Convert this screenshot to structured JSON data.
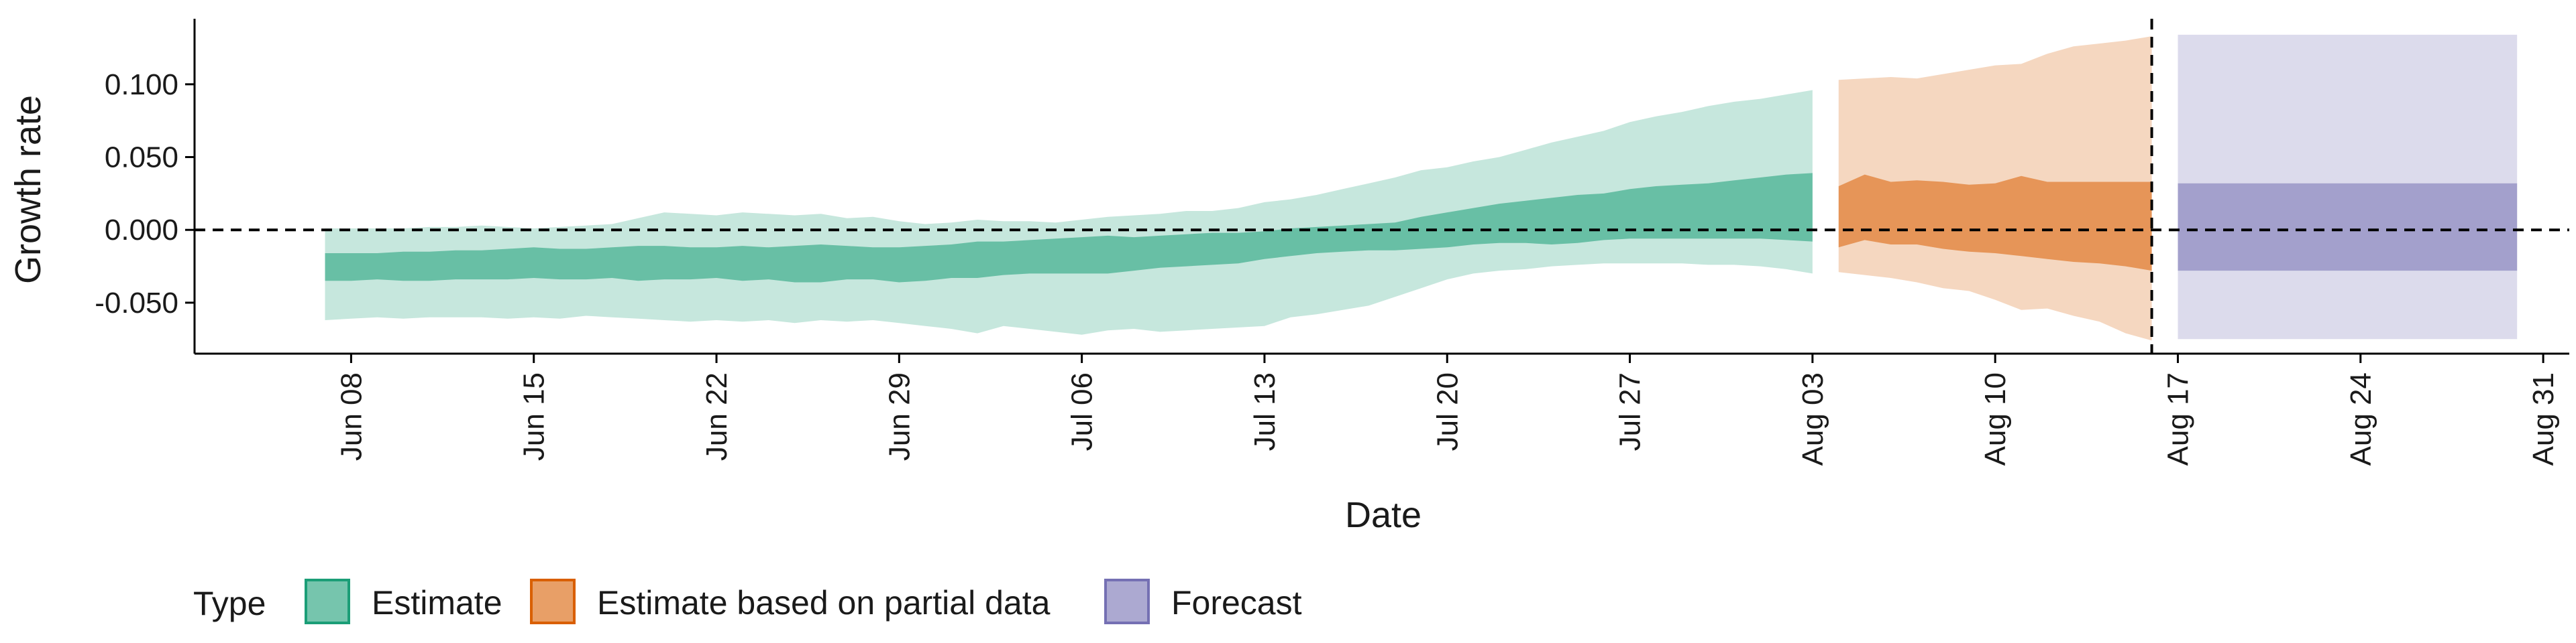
{
  "chart_data": {
    "type": "area",
    "xlabel": "Date",
    "ylabel": "Growth rate",
    "x_tick_labels": [
      "Jun 08",
      "Jun 15",
      "Jun 22",
      "Jun 29",
      "Jul 06",
      "Jul 13",
      "Jul 20",
      "Jul 27",
      "Aug 03",
      "Aug 10",
      "Aug 17",
      "Aug 24",
      "Aug 31"
    ],
    "y_tick_labels": [
      "-0.050",
      "0.000",
      "0.050",
      "0.100"
    ],
    "y_ticks": [
      -0.05,
      0.0,
      0.05,
      0.1
    ],
    "ylim": [
      -0.085,
      0.145
    ],
    "xlim_days_note": "",
    "x_range": [
      "2020-06-02",
      "2020-09-01"
    ],
    "reference_line_y": 0.0,
    "vertical_line_date": "2020-08-16",
    "grid": false,
    "legend": {
      "title": "Type",
      "position": "bottom-left",
      "entries": [
        "Estimate",
        "Estimate based on partial data",
        "Forecast"
      ]
    },
    "colors": {
      "Estimate": "#1b9e77",
      "Estimate based on partial data": "#d95f02",
      "Forecast": "#7570b3"
    },
    "series": [
      {
        "name": "Estimate",
        "date": [
          "2020-06-07",
          "2020-06-08",
          "2020-06-09",
          "2020-06-10",
          "2020-06-11",
          "2020-06-12",
          "2020-06-13",
          "2020-06-14",
          "2020-06-15",
          "2020-06-16",
          "2020-06-17",
          "2020-06-18",
          "2020-06-19",
          "2020-06-20",
          "2020-06-21",
          "2020-06-22",
          "2020-06-23",
          "2020-06-24",
          "2020-06-25",
          "2020-06-26",
          "2020-06-27",
          "2020-06-28",
          "2020-06-29",
          "2020-06-30",
          "2020-07-01",
          "2020-07-02",
          "2020-07-03",
          "2020-07-04",
          "2020-07-05",
          "2020-07-06",
          "2020-07-07",
          "2020-07-08",
          "2020-07-09",
          "2020-07-10",
          "2020-07-11",
          "2020-07-12",
          "2020-07-13",
          "2020-07-14",
          "2020-07-15",
          "2020-07-16",
          "2020-07-17",
          "2020-07-18",
          "2020-07-19",
          "2020-07-20",
          "2020-07-21",
          "2020-07-22",
          "2020-07-23",
          "2020-07-24",
          "2020-07-25",
          "2020-07-26",
          "2020-07-27",
          "2020-07-28",
          "2020-07-29",
          "2020-07-30",
          "2020-07-31",
          "2020-08-01",
          "2020-08-02",
          "2020-08-03"
        ],
        "lower_90": [
          -0.062,
          -0.061,
          -0.06,
          -0.061,
          -0.06,
          -0.06,
          -0.06,
          -0.061,
          -0.06,
          -0.061,
          -0.059,
          -0.06,
          -0.061,
          -0.062,
          -0.063,
          -0.062,
          -0.063,
          -0.062,
          -0.064,
          -0.062,
          -0.063,
          -0.062,
          -0.064,
          -0.066,
          -0.068,
          -0.071,
          -0.066,
          -0.068,
          -0.07,
          -0.072,
          -0.069,
          -0.068,
          -0.07,
          -0.069,
          -0.068,
          -0.067,
          -0.066,
          -0.06,
          -0.058,
          -0.055,
          -0.052,
          -0.046,
          -0.04,
          -0.034,
          -0.03,
          -0.028,
          -0.027,
          -0.025,
          -0.024,
          -0.023,
          -0.023,
          -0.023,
          -0.023,
          -0.024,
          -0.024,
          -0.025,
          -0.027,
          -0.03
        ],
        "lower_50": [
          -0.035,
          -0.035,
          -0.034,
          -0.035,
          -0.035,
          -0.034,
          -0.034,
          -0.034,
          -0.033,
          -0.034,
          -0.034,
          -0.033,
          -0.035,
          -0.034,
          -0.034,
          -0.033,
          -0.035,
          -0.034,
          -0.036,
          -0.036,
          -0.034,
          -0.034,
          -0.036,
          -0.035,
          -0.033,
          -0.033,
          -0.031,
          -0.03,
          -0.03,
          -0.03,
          -0.03,
          -0.028,
          -0.026,
          -0.025,
          -0.024,
          -0.023,
          -0.02,
          -0.018,
          -0.016,
          -0.015,
          -0.014,
          -0.014,
          -0.013,
          -0.012,
          -0.01,
          -0.009,
          -0.009,
          -0.01,
          -0.009,
          -0.007,
          -0.006,
          -0.006,
          -0.006,
          -0.006,
          -0.006,
          -0.006,
          -0.007,
          -0.008
        ],
        "upper_50": [
          -0.016,
          -0.016,
          -0.016,
          -0.015,
          -0.015,
          -0.014,
          -0.014,
          -0.013,
          -0.012,
          -0.013,
          -0.013,
          -0.012,
          -0.011,
          -0.011,
          -0.012,
          -0.012,
          -0.011,
          -0.012,
          -0.011,
          -0.01,
          -0.011,
          -0.012,
          -0.012,
          -0.011,
          -0.01,
          -0.008,
          -0.008,
          -0.007,
          -0.006,
          -0.005,
          -0.004,
          -0.005,
          -0.004,
          -0.003,
          -0.002,
          -0.002,
          -0.001,
          0.001,
          0.002,
          0.003,
          0.004,
          0.005,
          0.009,
          0.012,
          0.015,
          0.018,
          0.02,
          0.022,
          0.024,
          0.025,
          0.028,
          0.03,
          0.031,
          0.032,
          0.034,
          0.036,
          0.038,
          0.039
        ],
        "upper_90": [
          0.001,
          0.001,
          0.001,
          0.001,
          0.002,
          0.002,
          0.003,
          0.002,
          0.001,
          0.002,
          0.003,
          0.004,
          0.008,
          0.012,
          0.011,
          0.01,
          0.012,
          0.011,
          0.01,
          0.011,
          0.008,
          0.009,
          0.006,
          0.004,
          0.005,
          0.007,
          0.006,
          0.006,
          0.005,
          0.007,
          0.009,
          0.01,
          0.011,
          0.013,
          0.013,
          0.015,
          0.019,
          0.021,
          0.024,
          0.028,
          0.032,
          0.036,
          0.041,
          0.043,
          0.047,
          0.05,
          0.055,
          0.06,
          0.064,
          0.068,
          0.074,
          0.078,
          0.081,
          0.085,
          0.088,
          0.09,
          0.093,
          0.096
        ]
      },
      {
        "name": "Estimate based on partial data",
        "date": [
          "2020-08-04",
          "2020-08-05",
          "2020-08-06",
          "2020-08-07",
          "2020-08-08",
          "2020-08-09",
          "2020-08-10",
          "2020-08-11",
          "2020-08-12",
          "2020-08-13",
          "2020-08-14",
          "2020-08-15",
          "2020-08-16"
        ],
        "lower_90": [
          -0.029,
          -0.031,
          -0.033,
          -0.036,
          -0.04,
          -0.042,
          -0.048,
          -0.055,
          -0.054,
          -0.059,
          -0.063,
          -0.071,
          -0.076
        ],
        "lower_50": [
          -0.012,
          -0.007,
          -0.01,
          -0.01,
          -0.013,
          -0.015,
          -0.016,
          -0.018,
          -0.02,
          -0.022,
          -0.023,
          -0.025,
          -0.028
        ],
        "upper_50": [
          0.03,
          0.038,
          0.033,
          0.034,
          0.033,
          0.031,
          0.032,
          0.037,
          0.033,
          0.033,
          0.033,
          0.033,
          0.033
        ],
        "upper_90": [
          0.103,
          0.104,
          0.105,
          0.104,
          0.107,
          0.11,
          0.113,
          0.114,
          0.121,
          0.126,
          0.128,
          0.13,
          0.133
        ]
      },
      {
        "name": "Forecast",
        "date": [
          "2020-08-17",
          "2020-08-30"
        ],
        "lower_90": [
          -0.075,
          -0.075
        ],
        "lower_50": [
          -0.028,
          -0.028
        ],
        "upper_50": [
          0.032,
          0.032
        ],
        "upper_90": [
          0.134,
          0.134
        ]
      }
    ]
  }
}
